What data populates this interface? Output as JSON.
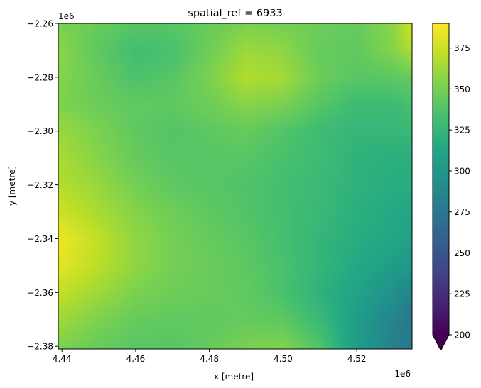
{
  "chart_data": {
    "type": "heatmap",
    "title": "spatial_ref = 6933",
    "xlabel": "x [metre]",
    "ylabel": "y [metre]",
    "x_offset_label": "1e6",
    "y_offset_label": "1e6",
    "xlim": [
      4.439,
      4.535
    ],
    "ylim": [
      -2.381,
      -2.26
    ],
    "x_ticks": [
      4.44,
      4.46,
      4.48,
      4.5,
      4.52
    ],
    "x_tick_labels": [
      "4.44",
      "4.46",
      "4.48",
      "4.50",
      "4.52"
    ],
    "y_ticks": [
      -2.26,
      -2.28,
      -2.3,
      -2.32,
      -2.34,
      -2.36,
      -2.38
    ],
    "y_tick_labels": [
      "−2.26",
      "−2.28",
      "−2.30",
      "−2.32",
      "−2.34",
      "−2.36",
      "−2.38"
    ],
    "colorbar": {
      "colormap": "viridis",
      "vmin": 200,
      "vmax": 390,
      "extend": "min",
      "ticks": [
        200,
        225,
        250,
        275,
        300,
        325,
        350,
        375
      ],
      "tick_labels": [
        "200",
        "225",
        "250",
        "275",
        "300",
        "325",
        "350",
        "375"
      ]
    },
    "grid_x": [
      4.44,
      4.45,
      4.46,
      4.47,
      4.48,
      4.49,
      4.5,
      4.51,
      4.52,
      4.53,
      4.535
    ],
    "grid_y": [
      -2.26,
      -2.27,
      -2.28,
      -2.29,
      -2.3,
      -2.31,
      -2.32,
      -2.33,
      -2.34,
      -2.35,
      -2.36,
      -2.37,
      -2.381
    ],
    "values": [
      [
        352,
        345,
        340,
        340,
        345,
        352,
        350,
        347,
        345,
        358,
        378
      ],
      [
        356,
        342,
        332,
        335,
        348,
        362,
        358,
        345,
        343,
        355,
        368
      ],
      [
        355,
        345,
        336,
        340,
        352,
        368,
        364,
        347,
        340,
        342,
        345
      ],
      [
        353,
        347,
        342,
        343,
        348,
        356,
        352,
        340,
        330,
        330,
        335
      ],
      [
        360,
        352,
        343,
        338,
        342,
        345,
        338,
        330,
        325,
        325,
        328
      ],
      [
        365,
        355,
        345,
        340,
        340,
        340,
        335,
        330,
        322,
        320,
        320
      ],
      [
        368,
        360,
        350,
        342,
        340,
        337,
        333,
        328,
        322,
        318,
        318
      ],
      [
        375,
        365,
        355,
        348,
        342,
        338,
        333,
        327,
        320,
        315,
        312
      ],
      [
        385,
        372,
        358,
        350,
        345,
        340,
        333,
        325,
        318,
        312,
        308
      ],
      [
        382,
        370,
        358,
        350,
        346,
        342,
        335,
        325,
        315,
        305,
        300
      ],
      [
        372,
        362,
        352,
        348,
        346,
        343,
        335,
        322,
        310,
        295,
        285
      ],
      [
        362,
        353,
        345,
        343,
        343,
        345,
        342,
        328,
        305,
        285,
        275
      ],
      [
        352,
        345,
        340,
        340,
        345,
        352,
        355,
        338,
        305,
        282,
        278
      ]
    ]
  }
}
